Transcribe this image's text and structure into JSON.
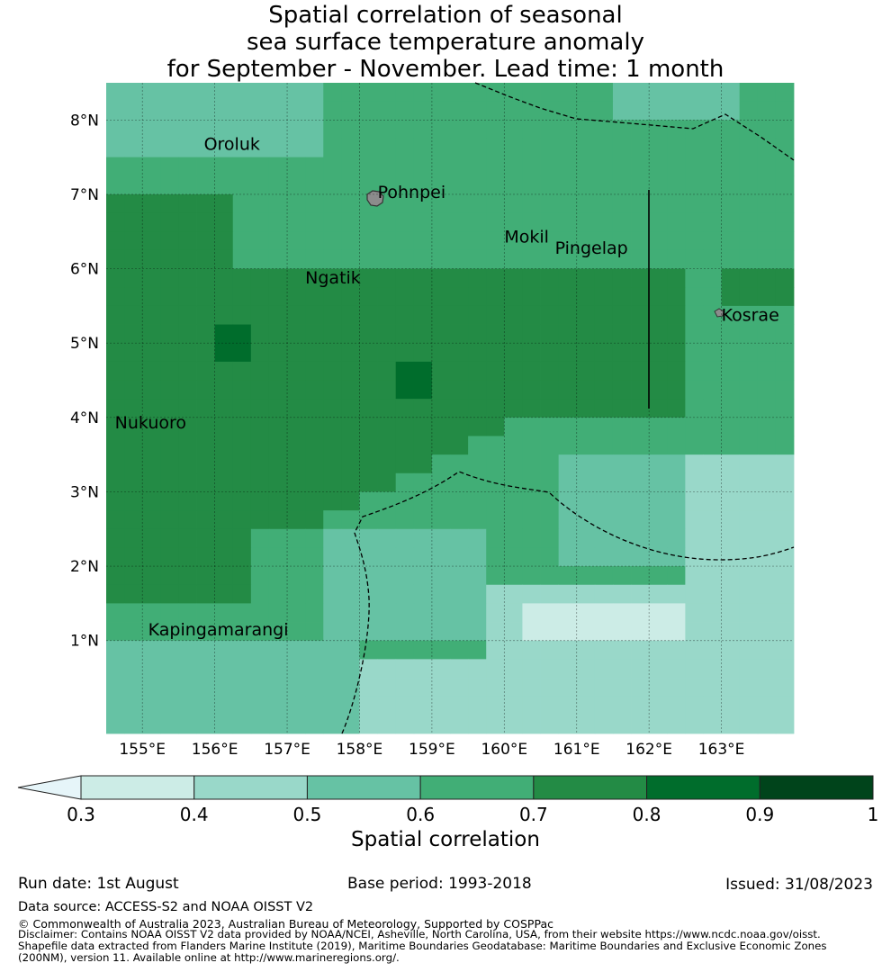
{
  "title": {
    "line1": "Spatial correlation of seasonal",
    "line2": "sea surface temperature anomaly",
    "line3": "for September - November. Lead time: 1 month"
  },
  "map": {
    "lon_range": [
      154.5,
      164.0
    ],
    "lat_range": [
      -0.25,
      8.5
    ],
    "lat_ticks": [
      "1°N",
      "2°N",
      "3°N",
      "4°N",
      "5°N",
      "6°N",
      "7°N",
      "8°N"
    ],
    "lon_ticks": [
      "155°E",
      "156°E",
      "157°E",
      "158°E",
      "159°E",
      "160°E",
      "161°E",
      "162°E",
      "163°E"
    ],
    "grid": true,
    "places": [
      {
        "name": "Oroluk",
        "lon": 155.85,
        "lat": 7.6
      },
      {
        "name": "Pohnpei",
        "lon": 158.25,
        "lat": 6.95
      },
      {
        "name": "Mokil",
        "lon": 160.0,
        "lat": 6.35
      },
      {
        "name": "Pingelap",
        "lon": 160.7,
        "lat": 6.2
      },
      {
        "name": "Ngatik",
        "lon": 157.25,
        "lat": 5.8
      },
      {
        "name": "Kosrae",
        "lon": 163.0,
        "lat": 5.3
      },
      {
        "name": "Nukuoro",
        "lon": 154.62,
        "lat": 3.85
      },
      {
        "name": "Kapingamarangi",
        "lon": 155.08,
        "lat": 1.07
      }
    ]
  },
  "colorbar": {
    "ticks": [
      "0.3",
      "0.4",
      "0.5",
      "0.6",
      "0.7",
      "0.8",
      "0.9",
      "1"
    ],
    "colors": [
      "#e6f5f9",
      "#ccece6",
      "#99d8c9",
      "#66c2a4",
      "#41ae76",
      "#238b45",
      "#006d2c",
      "#00441b"
    ],
    "label": "Spatial correlation"
  },
  "footer": {
    "run_date": "Run date: 1st August",
    "base_period": "Base period: 1993-2018",
    "issued": "Issued: 31/08/2023",
    "data_source": "Data source: ACCESS-S2 and NOAA OISST V2",
    "copyright": "© Commonwealth of Australia 2023, Australian Bureau of Meteorology, Supported by COSPPac",
    "disclaimer1": "Disclaimer: Contains NOAA OISST V2 data provided by NOAA/NCEI, Asheville, North Carolina, USA, from their website https://www.ncdc.noaa.gov/oisst.",
    "disclaimer2": "Shapefile data extracted from Flanders Marine Institute (2019), Maritime Boundaries Geodatabase: Maritime Boundaries and Exclusive Economic Zones",
    "disclaimer3": "(200NM), version 11. Available online at http://www.marineregions.org/."
  }
}
